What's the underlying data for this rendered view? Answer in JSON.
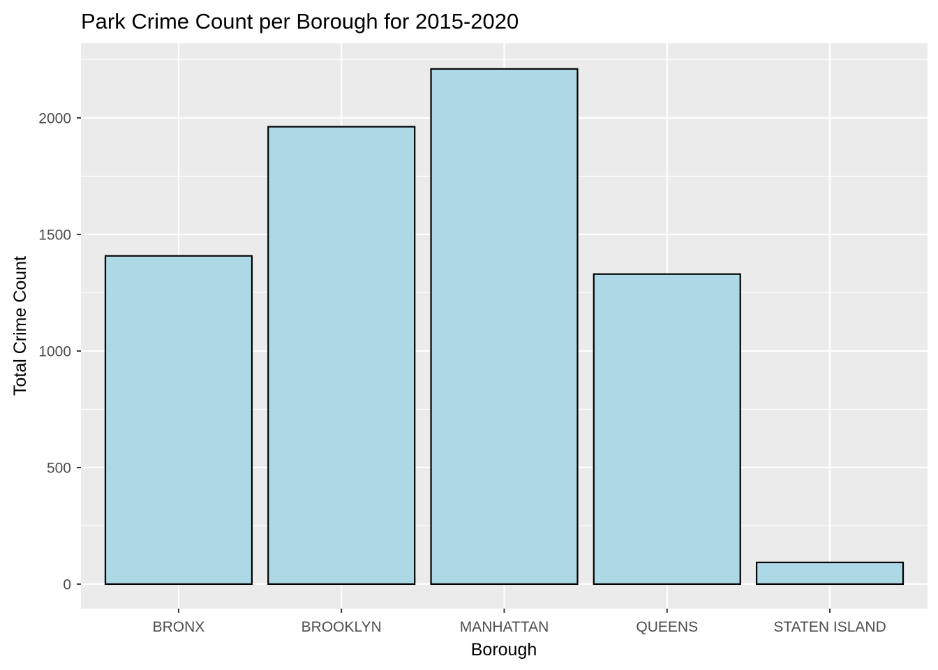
{
  "chart_data": {
    "type": "bar",
    "title": "Park Crime Count per Borough for 2015-2020",
    "xlabel": "Borough",
    "ylabel": "Total Crime Count",
    "categories": [
      "BRONX",
      "BROOKLYN",
      "MANHATTAN",
      "QUEENS",
      "STATEN ISLAND"
    ],
    "values": [
      1408,
      1962,
      2210,
      1330,
      93
    ],
    "ylim": [
      -105,
      2320
    ],
    "yticks": [
      0,
      500,
      1000,
      1500,
      2000
    ],
    "ytick_labels": [
      "0",
      "500",
      "1000",
      "1500",
      "2000"
    ],
    "grid": true,
    "legend": "none",
    "colors": {
      "panel_background": "#ebebeb",
      "grid": "#ffffff",
      "bar_fill": "#add8e6",
      "bar_outline": "#000000",
      "tick_label": "#4d4d4d",
      "tick_mark": "#333333",
      "text": "#000000"
    }
  }
}
